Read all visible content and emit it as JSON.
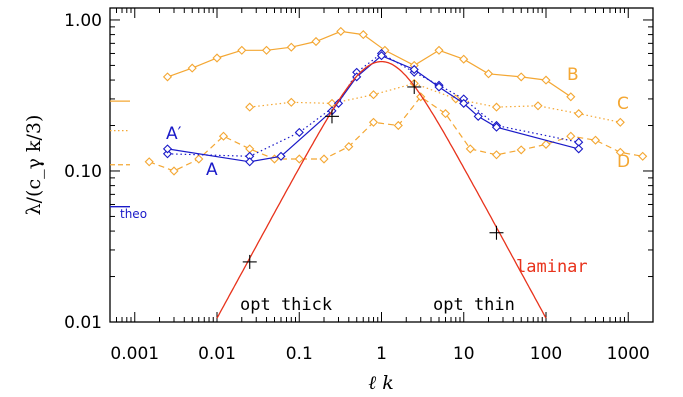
{
  "chart_data": {
    "type": "line",
    "xscale": "log",
    "yscale": "log",
    "xlim": [
      0.0005,
      2000
    ],
    "ylim": [
      0.01,
      1.2
    ],
    "xlabel": "ℓ k",
    "ylabel": "λ/(c_γ k/3)",
    "x_ticks": [
      {
        "value": 0.001,
        "label": "0.001"
      },
      {
        "value": 0.01,
        "label": "0.01"
      },
      {
        "value": 0.1,
        "label": "0.1"
      },
      {
        "value": 1,
        "label": "1"
      },
      {
        "value": 10,
        "label": "10"
      },
      {
        "value": 100,
        "label": "100"
      },
      {
        "value": 1000,
        "label": "1000"
      }
    ],
    "y_ticks": [
      {
        "value": 0.01,
        "label": "0.01"
      },
      {
        "value": 0.1,
        "label": "0.10"
      },
      {
        "value": 1,
        "label": "1.00"
      }
    ],
    "colors": {
      "orange": "#f4a733",
      "blue": "#1a1ac8",
      "red": "#e8331c",
      "black": "#000000"
    },
    "series": [
      {
        "name": "B",
        "color": "#f4a733",
        "dash": "solid",
        "x": [
          0.0025,
          0.005,
          0.01,
          0.02,
          0.04,
          0.08,
          0.16,
          0.32,
          0.6,
          1.1,
          2.5,
          5,
          10,
          20,
          50,
          100,
          200
        ],
        "y": [
          0.42,
          0.48,
          0.56,
          0.63,
          0.63,
          0.66,
          0.72,
          0.84,
          0.8,
          0.63,
          0.5,
          0.63,
          0.55,
          0.44,
          0.42,
          0.4,
          0.31
        ]
      },
      {
        "name": "C",
        "color": "#f4a733",
        "dash": "dotted",
        "x": [
          0.025,
          0.08,
          0.25,
          0.8,
          2.5,
          8,
          25,
          80,
          250,
          800
        ],
        "y": [
          0.265,
          0.285,
          0.28,
          0.32,
          0.38,
          0.3,
          0.265,
          0.27,
          0.24,
          0.21
        ]
      },
      {
        "name": "D",
        "color": "#f4a733",
        "dash": "dashed",
        "x": [
          0.0015,
          0.003,
          0.006,
          0.012,
          0.025,
          0.05,
          0.1,
          0.2,
          0.4,
          0.8,
          1.6,
          3,
          6,
          12,
          25,
          50,
          100,
          200,
          400,
          800,
          1500
        ],
        "y": [
          0.115,
          0.1,
          0.12,
          0.17,
          0.14,
          0.12,
          0.12,
          0.12,
          0.145,
          0.21,
          0.2,
          0.31,
          0.24,
          0.14,
          0.128,
          0.138,
          0.15,
          0.17,
          0.16,
          0.133,
          0.125
        ]
      },
      {
        "name": "A′",
        "color": "#1a1ac8",
        "dash": "dotted",
        "x": [
          0.0025,
          0.025,
          0.1,
          0.3,
          0.5,
          1.0,
          2.5,
          5,
          10,
          25,
          250
        ],
        "y": [
          0.13,
          0.125,
          0.18,
          0.28,
          0.45,
          0.6,
          0.45,
          0.37,
          0.3,
          0.2,
          0.155
        ]
      },
      {
        "name": "A",
        "color": "#1a1ac8",
        "dash": "solid",
        "x": [
          0.0025,
          0.025,
          0.06,
          0.25,
          0.5,
          1.0,
          2.5,
          5,
          10,
          15,
          25,
          250
        ],
        "y": [
          0.14,
          0.115,
          0.125,
          0.25,
          0.42,
          0.58,
          0.47,
          0.36,
          0.28,
          0.23,
          0.195,
          0.14
        ]
      }
    ],
    "laminar": {
      "name": "laminar",
      "color": "#e8331c",
      "peak_x": 1.0,
      "peak_y": 0.53,
      "x_min": 0.01,
      "x_max": 100,
      "markers": [
        {
          "x": 0.025,
          "y": 0.025
        },
        {
          "x": 0.25,
          "y": 0.23
        },
        {
          "x": 2.5,
          "y": 0.36
        },
        {
          "x": 25,
          "y": 0.039
        }
      ]
    },
    "theo": {
      "label": "theo",
      "y": 0.058,
      "color": "#1a1ac8"
    },
    "left_reference_ticks": [
      {
        "y": 0.29,
        "color": "#f4a733",
        "style": "solid"
      },
      {
        "y": 0.185,
        "color": "#f4a733",
        "style": "dotted"
      },
      {
        "y": 0.11,
        "color": "#f4a733",
        "style": "dashed"
      }
    ],
    "annotations": {
      "opt_thick": "opt thick",
      "opt_thin": "opt thin",
      "laminar_label": "laminar"
    },
    "series_labels": [
      "B",
      "C",
      "D",
      "A′",
      "A"
    ]
  }
}
